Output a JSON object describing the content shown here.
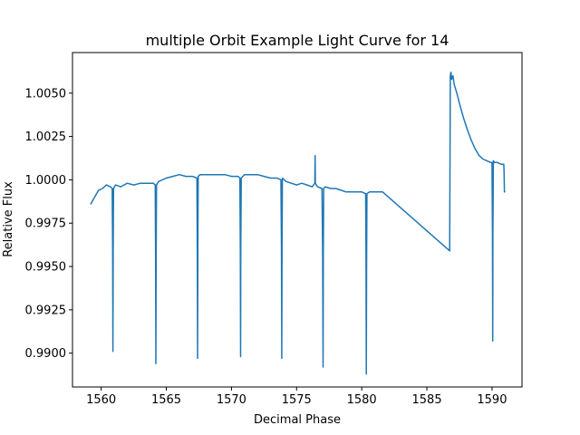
{
  "chart_data": {
    "type": "line",
    "title": "multiple Orbit Example Light Curve for 14",
    "xlabel": "Decimal Phase",
    "ylabel": "Relative Flux",
    "xlim": [
      1557.8,
      1592.3
    ],
    "ylim": [
      0.98805,
      1.00734
    ],
    "xticks": [
      1560,
      1565,
      1570,
      1575,
      1580,
      1585,
      1590
    ],
    "yticks": [
      0.99,
      0.9925,
      0.995,
      0.9975,
      1.0,
      1.0025,
      1.005
    ],
    "ytick_labels": [
      "0.9900",
      "0.9925",
      "0.9950",
      "0.9975",
      "1.0000",
      "1.0025",
      "1.0050"
    ],
    "grid": false,
    "series": [
      {
        "color": "#1f77b4",
        "x": [
          1559.2,
          1559.5,
          1559.8,
          1560.1,
          1560.4,
          1560.7,
          1560.85,
          1560.88,
          1560.9,
          1560.92,
          1560.95,
          1561.1,
          1561.5,
          1562.0,
          1562.5,
          1563.0,
          1563.5,
          1564.0,
          1564.15,
          1564.18,
          1564.2,
          1564.22,
          1564.25,
          1564.4,
          1565.0,
          1565.5,
          1566.0,
          1566.5,
          1567.0,
          1567.35,
          1567.38,
          1567.4,
          1567.42,
          1567.45,
          1567.6,
          1568.0,
          1568.5,
          1569.0,
          1569.5,
          1570.0,
          1570.5,
          1570.65,
          1570.68,
          1570.7,
          1570.72,
          1570.75,
          1571.0,
          1571.5,
          1572.0,
          1572.5,
          1573.0,
          1573.5,
          1573.8,
          1573.84,
          1573.86,
          1573.88,
          1573.91,
          1574.2,
          1574.6,
          1575.0,
          1575.4,
          1575.8,
          1576.2,
          1576.4,
          1576.42,
          1576.44,
          1576.6,
          1576.95,
          1577.0,
          1577.03,
          1577.05,
          1577.08,
          1577.2,
          1577.6,
          1578.0,
          1578.4,
          1578.8,
          1579.2,
          1579.6,
          1580.0,
          1580.3,
          1580.33,
          1580.35,
          1580.37,
          1580.4,
          1580.6,
          1580.9,
          1581.2,
          1581.6,
          1586.75,
          1586.8,
          1586.85,
          1586.9,
          1587.0,
          1587.1,
          1587.3,
          1587.5,
          1587.8,
          1588.1,
          1588.4,
          1588.7,
          1589.0,
          1589.3,
          1589.6,
          1589.9,
          1590.0,
          1590.03,
          1590.05,
          1590.07,
          1590.1,
          1590.2,
          1590.4,
          1590.7,
          1590.85,
          1590.9,
          1590.92,
          1590.95,
          1591.0
        ],
        "y": [
          0.9986,
          0.999,
          0.9994,
          0.9995,
          0.9997,
          0.9996,
          0.9995,
          0.996,
          0.9901,
          0.996,
          0.9995,
          0.9997,
          0.9996,
          0.9998,
          0.9997,
          0.9998,
          0.9998,
          0.9998,
          0.9997,
          0.9955,
          0.9894,
          0.9955,
          0.9997,
          0.9999,
          1.0001,
          1.0002,
          1.0003,
          1.0002,
          1.0002,
          1.0001,
          0.996,
          0.9897,
          0.996,
          1.0002,
          1.0003,
          1.0003,
          1.0003,
          1.0003,
          1.0003,
          1.0002,
          1.0002,
          1.0001,
          0.996,
          0.9898,
          0.996,
          1.0001,
          1.0003,
          1.0003,
          1.0003,
          1.0002,
          1.0001,
          1.0001,
          1.0,
          0.996,
          0.9897,
          0.996,
          1.0001,
          0.9999,
          0.9998,
          0.9997,
          0.9998,
          0.9997,
          0.9996,
          0.9998,
          1.0014,
          0.9998,
          0.9996,
          0.9995,
          0.996,
          0.9892,
          0.996,
          0.9995,
          0.9996,
          0.9995,
          0.9995,
          0.9994,
          0.9993,
          0.9993,
          0.9993,
          0.9993,
          0.9992,
          0.995,
          0.9888,
          0.995,
          0.9992,
          0.9993,
          0.9993,
          0.9993,
          0.9993,
          0.9959,
          1.006,
          1.0062,
          1.0058,
          1.006,
          1.0055,
          1.005,
          1.0044,
          1.0036,
          1.0029,
          1.0023,
          1.0018,
          1.0014,
          1.0012,
          1.0011,
          1.001,
          1.001,
          0.997,
          0.9907,
          0.997,
          1.0011,
          1.001,
          1.001,
          1.0009,
          1.0009,
          1.0009,
          1.0005,
          0.9993,
          0.9993
        ]
      }
    ]
  }
}
